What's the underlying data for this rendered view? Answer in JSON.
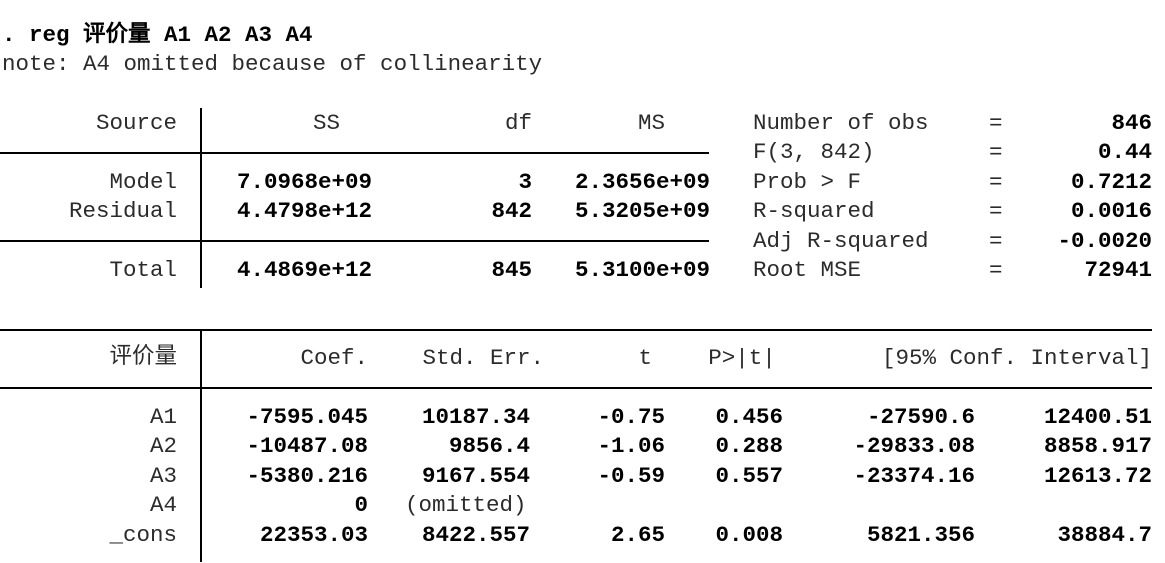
{
  "command": {
    "prompt": ". reg",
    "varlist": "评价量 A1 A2 A3 A4"
  },
  "note": "note: A4 omitted because of collinearity",
  "anova": {
    "headers": {
      "source": "Source",
      "ss": "SS",
      "df": "df",
      "ms": "MS"
    },
    "rows": [
      {
        "source": "Model",
        "ss": "7.0968e+09",
        "df": "3",
        "ms": "2.3656e+09"
      },
      {
        "source": "Residual",
        "ss": "4.4798e+12",
        "df": "842",
        "ms": "5.3205e+09"
      },
      {
        "source": "Total",
        "ss": "4.4869e+12",
        "df": "845",
        "ms": "5.3100e+09"
      }
    ]
  },
  "stats": [
    {
      "label": "Number of obs",
      "eq": "=",
      "value": "846"
    },
    {
      "label": "F(3, 842)",
      "eq": "=",
      "value": "0.44"
    },
    {
      "label": "Prob > F",
      "eq": "=",
      "value": "0.7212"
    },
    {
      "label": "R-squared",
      "eq": "=",
      "value": "0.0016"
    },
    {
      "label": "Adj R-squared",
      "eq": "=",
      "value": "-0.0020"
    },
    {
      "label": "Root MSE",
      "eq": "=",
      "value": "72941"
    }
  ],
  "coef": {
    "headers": {
      "var": "评价量",
      "coef": "Coef.",
      "se": "Std. Err.",
      "t": "t",
      "p": "P>|t|",
      "ci": "[95% Conf. Interval]"
    },
    "rows": [
      {
        "var": "A1",
        "coef": "-7595.045",
        "se": "10187.34",
        "t": "-0.75",
        "p": "0.456",
        "lo": "-27590.6",
        "hi": "12400.51"
      },
      {
        "var": "A2",
        "coef": "-10487.08",
        "se": "9856.4",
        "t": "-1.06",
        "p": "0.288",
        "lo": "-29833.08",
        "hi": "8858.917"
      },
      {
        "var": "A3",
        "coef": "-5380.216",
        "se": "9167.554",
        "t": "-0.59",
        "p": "0.557",
        "lo": "-23374.16",
        "hi": "12613.72"
      },
      {
        "var": "A4",
        "coef": "0",
        "se": "(omitted)",
        "t": "",
        "p": "",
        "lo": "",
        "hi": ""
      },
      {
        "var": "_cons",
        "coef": "22353.03",
        "se": "8422.557",
        "t": "2.65",
        "p": "0.008",
        "lo": "5821.356",
        "hi": "38884.7"
      }
    ]
  }
}
